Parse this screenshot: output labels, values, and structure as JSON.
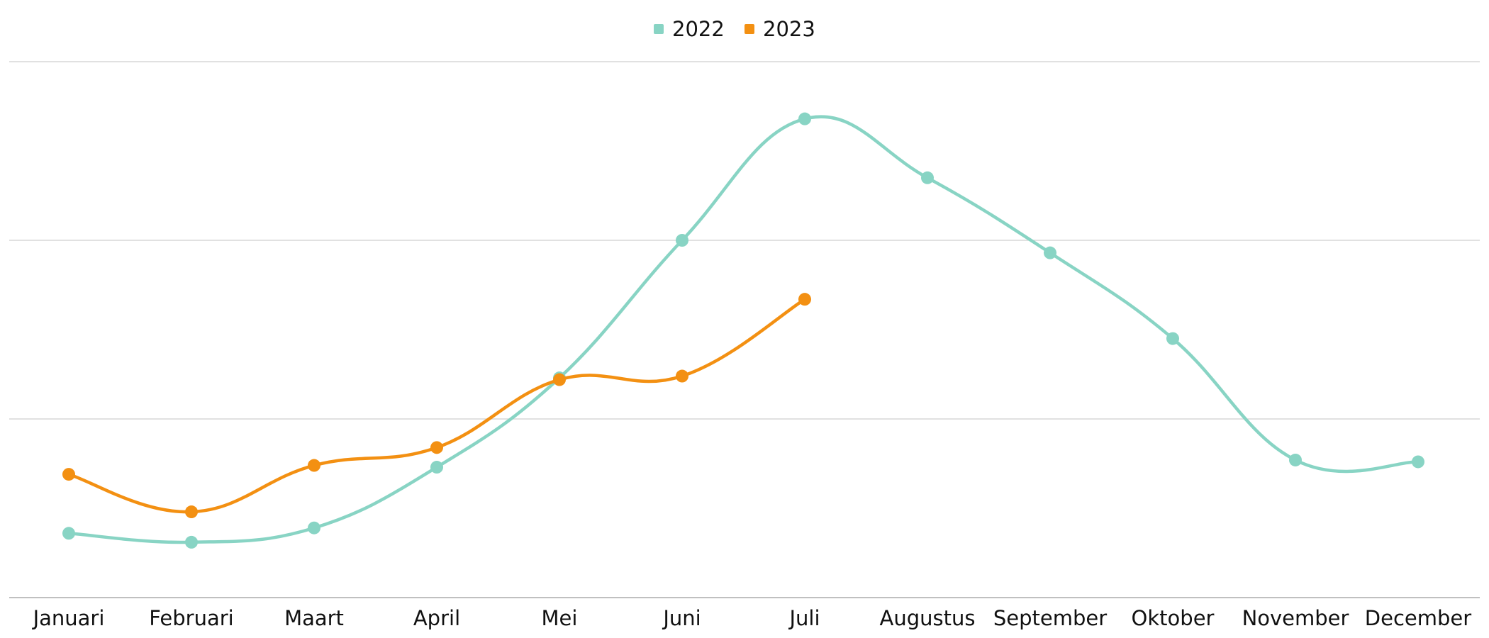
{
  "chart_data": {
    "type": "line",
    "smooth": true,
    "title": "",
    "xlabel": "",
    "ylabel": "",
    "categories": [
      "Januari",
      "Februari",
      "Maart",
      "April",
      "Mei",
      "Juni",
      "Juli",
      "Augustus",
      "September",
      "Oktober",
      "November",
      "December"
    ],
    "ylim": [
      0,
      300
    ],
    "y_gridlines": [
      0,
      100,
      200,
      300
    ],
    "y_tick_labels_shown": false,
    "grid": true,
    "legend": {
      "placement": "top-center",
      "marker": "square"
    },
    "series": [
      {
        "name": "2022",
        "color": "#88d4c4",
        "values": [
          36,
          31,
          39,
          73,
          123,
          200,
          268,
          235,
          193,
          145,
          77,
          76
        ]
      },
      {
        "name": "2023",
        "color": "#f39012",
        "values": [
          69,
          48,
          74,
          84,
          122,
          124,
          167,
          null,
          null,
          null,
          null,
          null
        ]
      }
    ]
  }
}
